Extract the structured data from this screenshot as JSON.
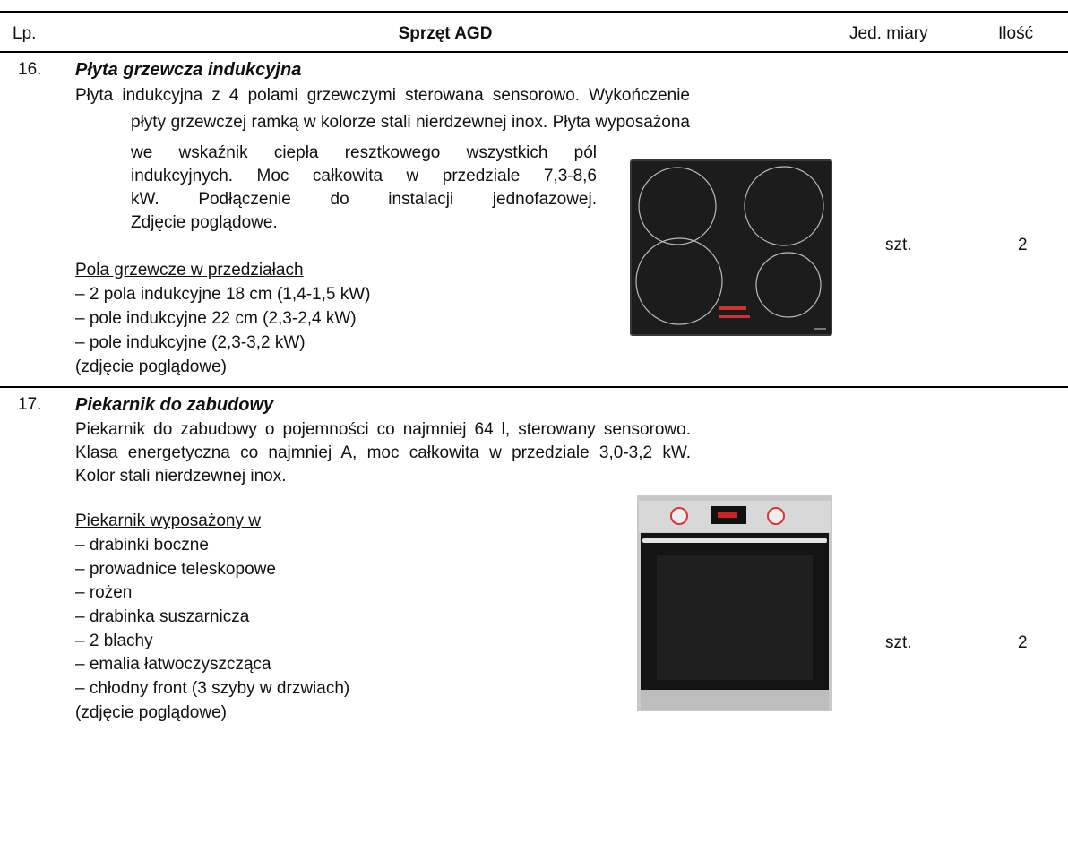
{
  "header": {
    "lp": "Lp.",
    "item": "Sprzęt AGD",
    "unit": "Jed. miary",
    "qty": "Ilość"
  },
  "rows": [
    {
      "lp": "16.",
      "title": "Płyta grzewcza indukcyjna",
      "description": [
        "Płyta indukcyjna z 4 polami grzewczymi sterowana sensorowo. Wykończenie",
        "płyty grzewczej ramką w kolorze stali nierdzewnej inox. Płyta wyposażona",
        "we wskaźnik ciepła resztkowego wszystkich pól",
        "indukcyjnych. Moc całkowita w przedziale 7,3-8,6",
        "kW. Podłączenie do instalacji jednofazowej.",
        "Zdjęcie poglądowe."
      ],
      "list_title": "Pola grzewcze w przedziałach",
      "list": [
        "– 2 pola indukcyjne 18 cm (1,4-1,5 kW)",
        "– pole indukcyjne 22 cm (2,3-2,4 kW)",
        "– pole indukcyjne (2,3-3,2 kW)",
        "(zdjęcie poglądowe)"
      ],
      "unit": "szt.",
      "qty": "2"
    },
    {
      "lp": "17.",
      "title": "Piekarnik do zabudowy",
      "description": [
        "Piekarnik do zabudowy o pojemności co najmniej 64 l, sterowany sensorowo.",
        "Klasa energetyczna co najmniej A, moc całkowita w przedziale 3,0-3,2 kW.",
        "Kolor stali nierdzewnej inox."
      ],
      "list_title": "Piekarnik wyposażony w",
      "list": [
        "– drabinki boczne",
        "– prowadnice teleskopowe",
        "– rożen",
        "– drabinka suszarnicza",
        "– 2 blachy",
        "– emalia łatwoczyszcząca",
        "– chłodny front (3 szyby w drzwiach)",
        "(zdjęcie poglądowe)"
      ],
      "unit": "szt.",
      "qty": "2"
    }
  ]
}
